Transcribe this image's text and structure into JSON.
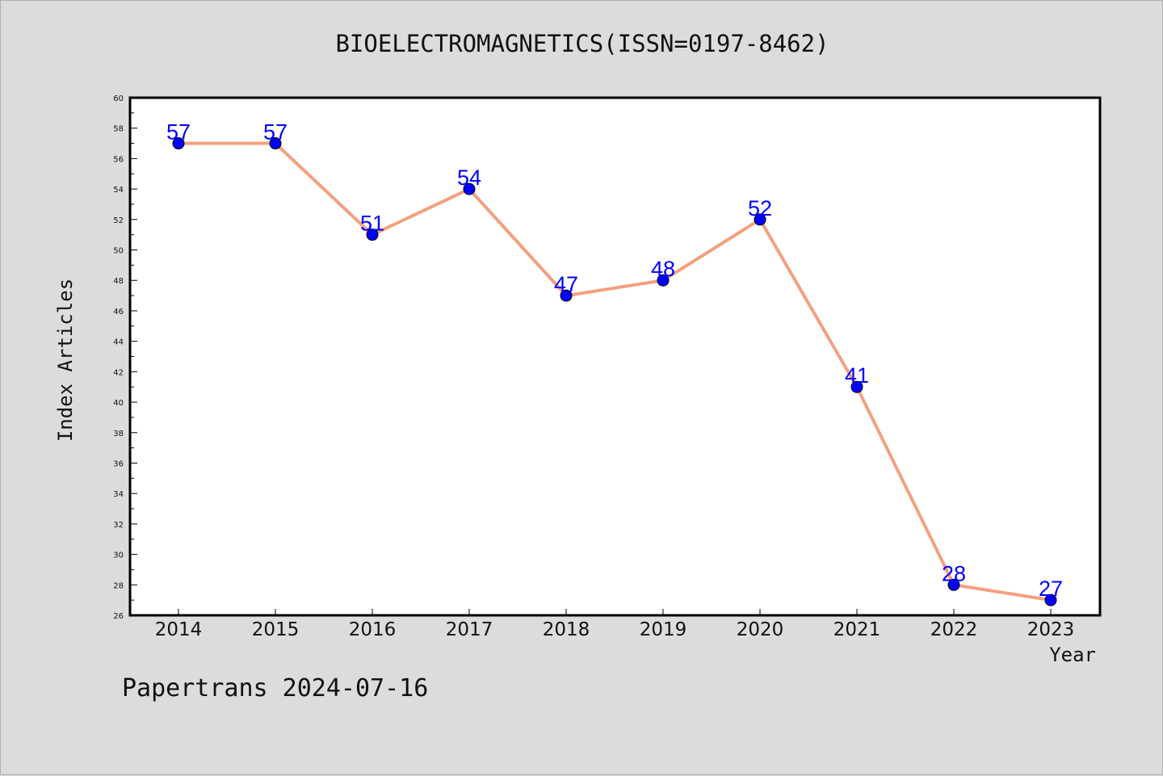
{
  "chart_data": {
    "type": "line",
    "title": "BIOELECTROMAGNETICS(ISSN=0197-8462)",
    "xlabel": "Year",
    "ylabel": "Index Articles",
    "categories": [
      "2014",
      "2015",
      "2016",
      "2017",
      "2018",
      "2019",
      "2020",
      "2021",
      "2022",
      "2023"
    ],
    "values": [
      57,
      57,
      51,
      54,
      47,
      48,
      52,
      41,
      28,
      27
    ],
    "ylim": [
      26,
      60
    ],
    "ytick_step": 2,
    "line_color": "#f4a07f",
    "marker_color": "#0000ff",
    "label_color": "#0000ff",
    "grid": false
  },
  "footer": "Papertrans 2024-07-16"
}
